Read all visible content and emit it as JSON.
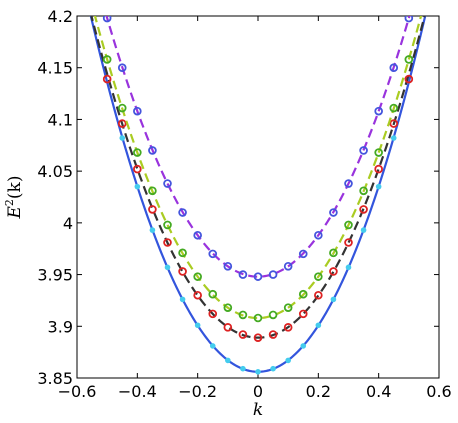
{
  "chart_data": {
    "type": "line",
    "xlabel": "k",
    "ylabel_base": "E",
    "ylabel_sup": "2",
    "ylabel_arg": "(k)",
    "xlim": [
      -0.6,
      0.6
    ],
    "ylim": [
      3.85,
      4.2
    ],
    "xticks": [
      -0.6,
      -0.4,
      -0.2,
      0,
      0.2,
      0.4,
      0.6
    ],
    "xtick_labels": [
      "−0.6",
      "−0.4",
      "−0.2",
      "0",
      "0.2",
      "0.4",
      "0.6"
    ],
    "yticks": [
      3.85,
      3.9,
      3.95,
      4.0,
      4.05,
      4.1,
      4.15,
      4.2
    ],
    "ytick_labels": [
      "3.85",
      "3.9",
      "3.95",
      "4",
      "4.05",
      "4.1",
      "4.15",
      "4.2"
    ],
    "grid": false,
    "series": [
      {
        "line_color": "#3355dd",
        "marker_color": "#44ccee",
        "dash": "solid",
        "curve_min": 3.856,
        "curve_coef": 1.12,
        "points_x": [
          -0.45,
          -0.4,
          -0.35,
          -0.3,
          -0.25,
          -0.2,
          -0.15,
          -0.1,
          -0.05,
          0,
          0.05,
          0.1,
          0.15,
          0.2,
          0.25,
          0.3,
          0.35,
          0.4,
          0.45
        ],
        "points_y": [
          4.082,
          4.035,
          3.993,
          3.957,
          3.926,
          3.901,
          3.881,
          3.867,
          3.859,
          3.856,
          3.859,
          3.867,
          3.881,
          3.901,
          3.926,
          3.957,
          3.993,
          4.035,
          4.082
        ]
      },
      {
        "line_color": "#333333",
        "marker_color": "#dd2222",
        "dash": "dashed",
        "curve_min": 3.889,
        "curve_coef": 1.02,
        "points_x": [
          -0.5,
          -0.45,
          -0.4,
          -0.35,
          -0.3,
          -0.25,
          -0.2,
          -0.15,
          -0.1,
          -0.05,
          0,
          0.05,
          0.1,
          0.15,
          0.2,
          0.25,
          0.3,
          0.35,
          0.4,
          0.45,
          0.5
        ],
        "points_y": [
          4.139,
          4.096,
          4.052,
          4.013,
          3.981,
          3.953,
          3.93,
          3.912,
          3.899,
          3.892,
          3.889,
          3.892,
          3.899,
          3.912,
          3.93,
          3.953,
          3.981,
          4.013,
          4.052,
          4.096,
          4.139
        ]
      },
      {
        "line_color": "#aacc22",
        "marker_color": "#44aa22",
        "dash": "dashed",
        "curve_min": 3.908,
        "curve_coef": 1.0,
        "points_x": [
          -0.5,
          -0.45,
          -0.4,
          -0.35,
          -0.3,
          -0.25,
          -0.2,
          -0.15,
          -0.1,
          -0.05,
          0,
          0.05,
          0.1,
          0.15,
          0.2,
          0.25,
          0.3,
          0.35,
          0.4,
          0.45,
          0.5
        ],
        "points_y": [
          4.158,
          4.111,
          4.068,
          4.031,
          3.998,
          3.971,
          3.948,
          3.931,
          3.918,
          3.911,
          3.908,
          3.911,
          3.918,
          3.931,
          3.948,
          3.971,
          3.998,
          4.031,
          4.068,
          4.111,
          4.158
        ]
      },
      {
        "line_color": "#9933dd",
        "marker_color": "#4455dd",
        "dash": "dashed",
        "curve_min": 3.948,
        "curve_coef": 1.0,
        "points_x": [
          -0.5,
          -0.45,
          -0.4,
          -0.35,
          -0.3,
          -0.25,
          -0.2,
          -0.15,
          -0.1,
          -0.05,
          0,
          0.05,
          0.1,
          0.15,
          0.2,
          0.25,
          0.3,
          0.35,
          0.4,
          0.45,
          0.5
        ],
        "points_y": [
          4.198,
          4.15,
          4.108,
          4.07,
          4.038,
          4.01,
          3.988,
          3.97,
          3.958,
          3.95,
          3.948,
          3.95,
          3.958,
          3.97,
          3.988,
          4.01,
          4.038,
          4.07,
          4.108,
          4.15,
          4.198
        ]
      }
    ]
  }
}
